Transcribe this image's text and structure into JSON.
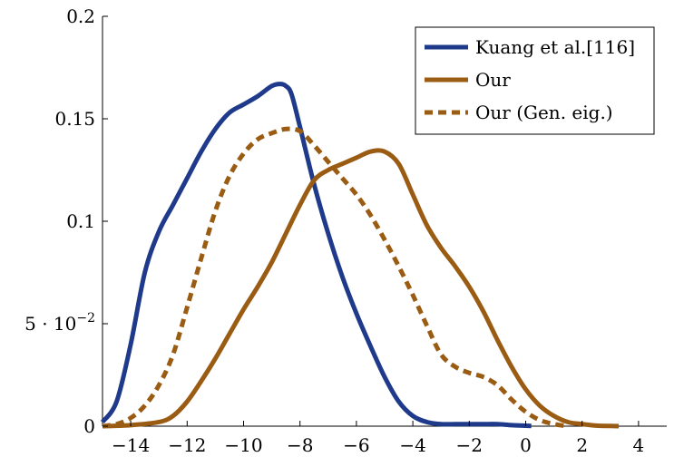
{
  "chart_data": {
    "type": "line",
    "title": "",
    "xlabel": "",
    "ylabel": "",
    "xlim": [
      -15,
      5
    ],
    "ylim": [
      0,
      0.2
    ],
    "x_ticks": [
      {
        "value": -14,
        "label": "−14"
      },
      {
        "value": -12,
        "label": "−12"
      },
      {
        "value": -10,
        "label": "−10"
      },
      {
        "value": -8,
        "label": "−8"
      },
      {
        "value": -6,
        "label": "−6"
      },
      {
        "value": -4,
        "label": "−4"
      },
      {
        "value": -2,
        "label": "−2"
      },
      {
        "value": 0,
        "label": "0"
      },
      {
        "value": 2,
        "label": "2"
      },
      {
        "value": 4,
        "label": "4"
      }
    ],
    "y_ticks": [
      {
        "value": 0,
        "label": "0"
      },
      {
        "value": 0.05,
        "label": "5 · 10",
        "sup": "−2"
      },
      {
        "value": 0.1,
        "label": "0.1"
      },
      {
        "value": 0.15,
        "label": "0.15"
      },
      {
        "value": 0.2,
        "label": "0.2"
      }
    ],
    "grid": false,
    "legend_position": "top-right",
    "series": [
      {
        "name": "Kuang et al.[116]",
        "color": "#1f3a8a",
        "dash": "solid",
        "x": [
          -15,
          -14.5,
          -14,
          -13.5,
          -13,
          -12.5,
          -12,
          -11.5,
          -11,
          -10.5,
          -10,
          -9.5,
          -9,
          -8.7,
          -8.5,
          -8.3,
          -8,
          -7.5,
          -7,
          -6.5,
          -6,
          -5.5,
          -5,
          -4.5,
          -4,
          -3.5,
          -3,
          -2.5,
          -2,
          -1.5,
          -1,
          -0.5,
          0,
          0.2
        ],
        "y": [
          0.002,
          0.012,
          0.04,
          0.075,
          0.095,
          0.108,
          0.121,
          0.134,
          0.145,
          0.153,
          0.157,
          0.161,
          0.166,
          0.167,
          0.166,
          0.162,
          0.146,
          0.118,
          0.094,
          0.073,
          0.055,
          0.039,
          0.024,
          0.012,
          0.005,
          0.002,
          0.001,
          0.001,
          0.001,
          0.001,
          0.001,
          0.0005,
          0.0002,
          0.0001
        ]
      },
      {
        "name": "Our",
        "color": "#9a5b13",
        "dash": "solid",
        "x": [
          -15,
          -14,
          -13,
          -12.5,
          -12,
          -11.5,
          -11,
          -10.5,
          -10,
          -9.5,
          -9,
          -8.5,
          -8,
          -7.5,
          -7,
          -6.5,
          -6,
          -5.5,
          -5,
          -4.5,
          -4,
          -3.5,
          -3,
          -2.5,
          -2,
          -1.5,
          -1,
          -0.5,
          0,
          0.5,
          1,
          1.5,
          2,
          2.5,
          3,
          3.3
        ],
        "y": [
          0,
          0.0005,
          0.002,
          0.005,
          0.012,
          0.022,
          0.033,
          0.045,
          0.057,
          0.068,
          0.08,
          0.094,
          0.108,
          0.12,
          0.125,
          0.128,
          0.131,
          0.134,
          0.134,
          0.128,
          0.113,
          0.098,
          0.087,
          0.078,
          0.068,
          0.056,
          0.042,
          0.029,
          0.018,
          0.01,
          0.005,
          0.002,
          0.001,
          0.0003,
          0.0001,
          0
        ]
      },
      {
        "name": "Our (Gen. eig.)",
        "color": "#9a5b13",
        "dash": "dashed",
        "x": [
          -15,
          -14.5,
          -14,
          -13.5,
          -13,
          -12.5,
          -12,
          -11.5,
          -11,
          -10.5,
          -10,
          -9.5,
          -9,
          -8.5,
          -8,
          -7.5,
          -7,
          -6.5,
          -6,
          -5.5,
          -5,
          -4.5,
          -4,
          -3.5,
          -3,
          -2.5,
          -2,
          -1.5,
          -1,
          -0.5,
          0,
          0.5,
          1,
          1.5
        ],
        "y": [
          0,
          0.001,
          0.004,
          0.01,
          0.02,
          0.035,
          0.058,
          0.082,
          0.105,
          0.122,
          0.133,
          0.14,
          0.143,
          0.145,
          0.144,
          0.137,
          0.129,
          0.121,
          0.113,
          0.103,
          0.091,
          0.078,
          0.064,
          0.049,
          0.035,
          0.029,
          0.026,
          0.024,
          0.02,
          0.013,
          0.007,
          0.003,
          0.001,
          0
        ]
      }
    ]
  }
}
